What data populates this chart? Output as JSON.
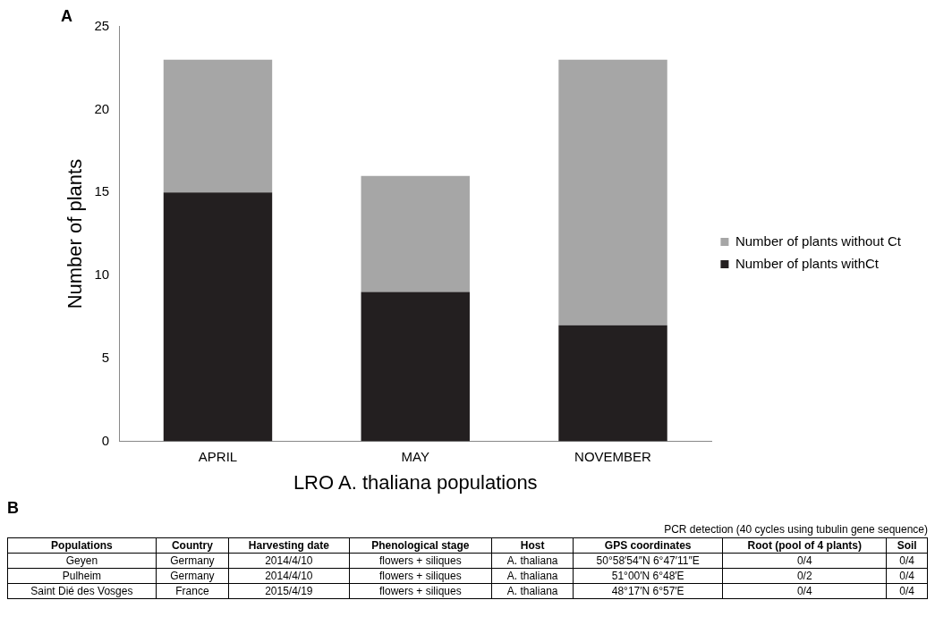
{
  "chart_data": [
    {
      "type": "bar",
      "title": "A",
      "xlabel": "LRO A. thaliana populations",
      "ylabel": "Number of plants",
      "categories": [
        "APRIL",
        "MAY",
        "NOVEMBER"
      ],
      "stacked": true,
      "series": [
        {
          "name": "Number of plants withCt",
          "color": "#231f20",
          "values": [
            15,
            9,
            7
          ]
        },
        {
          "name": "Number of plants without Ct",
          "color": "#a6a6a6",
          "values": [
            8,
            7,
            16
          ]
        }
      ],
      "ylim": [
        0,
        25
      ],
      "yticks": [
        0,
        5,
        10,
        15,
        20,
        25
      ],
      "grid": false,
      "legend": "right"
    },
    {
      "type": "other",
      "title": "B",
      "categories": [
        "Populations",
        "Country",
        "Harvesting date",
        "Phenological stage",
        "Host",
        "GPS coordinates",
        "Root (pool of 4 plants)",
        "Soil"
      ],
      "annotations": [
        "PCR detection (40 cycles using tubulin gene sequence)",
        "Geyen",
        "Germany",
        "2014/4/10",
        "flowers + siliques",
        "A. thaliana",
        "50°58′54″N 6°47′11″E",
        "0/4",
        "0/4",
        "Pulheim",
        "Germany",
        "2014/4/10",
        "flowers + siliques",
        "A. thaliana",
        "51°00′N 6°48′E",
        "0/2",
        "0/4",
        "Saint Dié des Vosges",
        "France",
        "2015/4/19",
        "flowers + siliques",
        "A. thaliana",
        "48°17′N 6°57′E",
        "0/4",
        "0/4"
      ]
    }
  ]
}
